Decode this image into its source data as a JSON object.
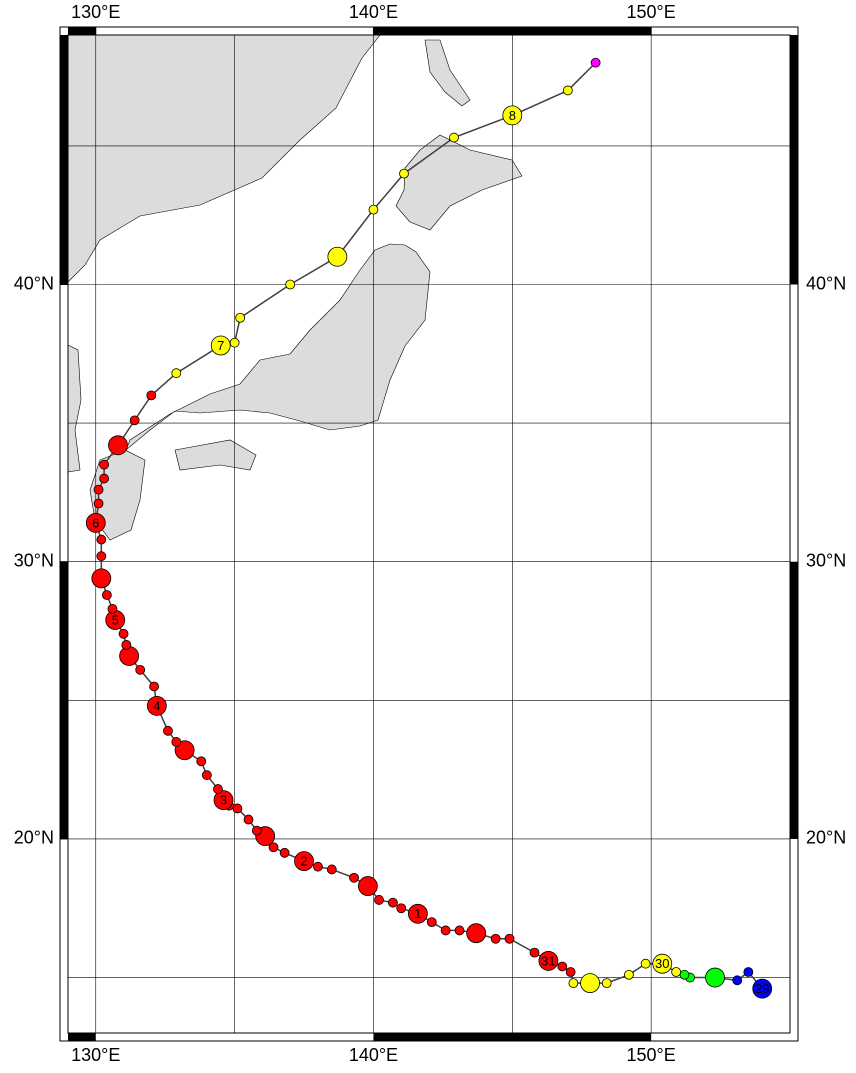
{
  "map": {
    "xlim": [
      129,
      155
    ],
    "ylim": [
      13,
      49
    ],
    "xticks": [
      {
        "value": 130,
        "label": "130°E"
      },
      {
        "value": 140,
        "label": "140°E"
      },
      {
        "value": 150,
        "label": "150°E"
      }
    ],
    "yticks": [
      {
        "value": 20,
        "label": "20°N"
      },
      {
        "value": 30,
        "label": "30°N"
      },
      {
        "value": 40,
        "label": "40°N"
      }
    ],
    "grid": {
      "lons": [
        130,
        135,
        140,
        145,
        150
      ],
      "lats": [
        15,
        20,
        25,
        30,
        35,
        40,
        45
      ]
    },
    "land_color": "#dcdcdc",
    "track_color": "#404040",
    "track": [
      {
        "lon": 154.0,
        "lat": 14.6,
        "color": "#0000ff",
        "major": true,
        "label": "29"
      },
      {
        "lon": 153.5,
        "lat": 15.2,
        "color": "#0000ff",
        "major": false
      },
      {
        "lon": 153.1,
        "lat": 14.9,
        "color": "#0000ff",
        "major": false
      },
      {
        "lon": 152.3,
        "lat": 15.0,
        "color": "#00ff00",
        "major": true
      },
      {
        "lon": 151.4,
        "lat": 15.0,
        "color": "#00ff00",
        "major": false
      },
      {
        "lon": 151.2,
        "lat": 15.1,
        "color": "#00ff00",
        "major": false
      },
      {
        "lon": 150.9,
        "lat": 15.2,
        "color": "#ffff00",
        "major": false
      },
      {
        "lon": 150.4,
        "lat": 15.5,
        "color": "#ffff00",
        "major": true,
        "label": "30"
      },
      {
        "lon": 149.8,
        "lat": 15.5,
        "color": "#ffff00",
        "major": false
      },
      {
        "lon": 149.2,
        "lat": 15.1,
        "color": "#ffff00",
        "major": false
      },
      {
        "lon": 148.4,
        "lat": 14.8,
        "color": "#ffff00",
        "major": false
      },
      {
        "lon": 147.8,
        "lat": 14.8,
        "color": "#ffff00",
        "major": true
      },
      {
        "lon": 147.2,
        "lat": 14.8,
        "color": "#ffff00",
        "major": false
      },
      {
        "lon": 147.1,
        "lat": 15.2,
        "color": "#ff0000",
        "major": false
      },
      {
        "lon": 146.8,
        "lat": 15.4,
        "color": "#ff0000",
        "major": false
      },
      {
        "lon": 146.3,
        "lat": 15.6,
        "color": "#ff0000",
        "major": true,
        "label": "31"
      },
      {
        "lon": 145.8,
        "lat": 15.9,
        "color": "#ff0000",
        "major": false
      },
      {
        "lon": 144.9,
        "lat": 16.4,
        "color": "#ff0000",
        "major": false
      },
      {
        "lon": 144.4,
        "lat": 16.4,
        "color": "#ff0000",
        "major": false
      },
      {
        "lon": 143.7,
        "lat": 16.6,
        "color": "#ff0000",
        "major": true
      },
      {
        "lon": 143.1,
        "lat": 16.7,
        "color": "#ff0000",
        "major": false
      },
      {
        "lon": 142.6,
        "lat": 16.7,
        "color": "#ff0000",
        "major": false
      },
      {
        "lon": 142.1,
        "lat": 17.0,
        "color": "#ff0000",
        "major": false
      },
      {
        "lon": 141.6,
        "lat": 17.3,
        "color": "#ff0000",
        "major": true,
        "label": "1"
      },
      {
        "lon": 141.0,
        "lat": 17.5,
        "color": "#ff0000",
        "major": false
      },
      {
        "lon": 140.7,
        "lat": 17.7,
        "color": "#ff0000",
        "major": false
      },
      {
        "lon": 140.2,
        "lat": 17.8,
        "color": "#ff0000",
        "major": false
      },
      {
        "lon": 139.8,
        "lat": 18.3,
        "color": "#ff0000",
        "major": true
      },
      {
        "lon": 139.3,
        "lat": 18.6,
        "color": "#ff0000",
        "major": false
      },
      {
        "lon": 138.5,
        "lat": 18.9,
        "color": "#ff0000",
        "major": false
      },
      {
        "lon": 138.0,
        "lat": 19.0,
        "color": "#ff0000",
        "major": false
      },
      {
        "lon": 137.5,
        "lat": 19.2,
        "color": "#ff0000",
        "major": true,
        "label": "2"
      },
      {
        "lon": 136.8,
        "lat": 19.5,
        "color": "#ff0000",
        "major": false
      },
      {
        "lon": 136.4,
        "lat": 19.7,
        "color": "#ff0000",
        "major": false
      },
      {
        "lon": 136.1,
        "lat": 20.1,
        "color": "#ff0000",
        "major": true
      },
      {
        "lon": 135.8,
        "lat": 20.3,
        "color": "#ff0000",
        "major": false
      },
      {
        "lon": 135.5,
        "lat": 20.7,
        "color": "#ff0000",
        "major": false
      },
      {
        "lon": 135.1,
        "lat": 21.1,
        "color": "#ff0000",
        "major": false
      },
      {
        "lon": 134.8,
        "lat": 21.2,
        "color": "#ff0000",
        "major": false
      },
      {
        "lon": 134.6,
        "lat": 21.4,
        "color": "#ff0000",
        "major": true,
        "label": "3"
      },
      {
        "lon": 134.4,
        "lat": 21.8,
        "color": "#ff0000",
        "major": false
      },
      {
        "lon": 134.0,
        "lat": 22.3,
        "color": "#ff0000",
        "major": false
      },
      {
        "lon": 133.8,
        "lat": 22.8,
        "color": "#ff0000",
        "major": false
      },
      {
        "lon": 133.2,
        "lat": 23.2,
        "color": "#ff0000",
        "major": true
      },
      {
        "lon": 132.9,
        "lat": 23.5,
        "color": "#ff0000",
        "major": false
      },
      {
        "lon": 132.6,
        "lat": 23.9,
        "color": "#ff0000",
        "major": false
      },
      {
        "lon": 132.2,
        "lat": 24.8,
        "color": "#ff0000",
        "major": true,
        "label": "4"
      },
      {
        "lon": 132.1,
        "lat": 25.5,
        "color": "#ff0000",
        "major": false
      },
      {
        "lon": 131.6,
        "lat": 26.1,
        "color": "#ff0000",
        "major": false
      },
      {
        "lon": 131.2,
        "lat": 26.6,
        "color": "#ff0000",
        "major": true
      },
      {
        "lon": 131.1,
        "lat": 27.0,
        "color": "#ff0000",
        "major": false
      },
      {
        "lon": 131.0,
        "lat": 27.4,
        "color": "#ff0000",
        "major": false
      },
      {
        "lon": 130.7,
        "lat": 27.9,
        "color": "#ff0000",
        "major": true,
        "label": "5"
      },
      {
        "lon": 130.6,
        "lat": 28.3,
        "color": "#ff0000",
        "major": false
      },
      {
        "lon": 130.4,
        "lat": 28.8,
        "color": "#ff0000",
        "major": false
      },
      {
        "lon": 130.2,
        "lat": 29.4,
        "color": "#ff0000",
        "major": true
      },
      {
        "lon": 130.2,
        "lat": 30.2,
        "color": "#ff0000",
        "major": false
      },
      {
        "lon": 130.2,
        "lat": 30.8,
        "color": "#ff0000",
        "major": false
      },
      {
        "lon": 130.0,
        "lat": 31.4,
        "color": "#ff0000",
        "major": true,
        "label": "6"
      },
      {
        "lon": 130.1,
        "lat": 32.1,
        "color": "#ff0000",
        "major": false
      },
      {
        "lon": 130.1,
        "lat": 32.6,
        "color": "#ff0000",
        "major": false
      },
      {
        "lon": 130.3,
        "lat": 33.0,
        "color": "#ff0000",
        "major": false
      },
      {
        "lon": 130.3,
        "lat": 33.5,
        "color": "#ff0000",
        "major": false
      },
      {
        "lon": 130.8,
        "lat": 34.2,
        "color": "#ff0000",
        "major": true
      },
      {
        "lon": 131.4,
        "lat": 35.1,
        "color": "#ff0000",
        "major": false
      },
      {
        "lon": 132.0,
        "lat": 36.0,
        "color": "#ff0000",
        "major": false
      },
      {
        "lon": 132.9,
        "lat": 36.8,
        "color": "#ffff00",
        "major": false
      },
      {
        "lon": 134.5,
        "lat": 37.8,
        "color": "#ffff00",
        "major": true,
        "label": "7"
      },
      {
        "lon": 135.0,
        "lat": 37.9,
        "color": "#ffff00",
        "major": false
      },
      {
        "lon": 135.2,
        "lat": 38.8,
        "color": "#ffff00",
        "major": false
      },
      {
        "lon": 137.0,
        "lat": 40.0,
        "color": "#ffff00",
        "major": false
      },
      {
        "lon": 138.7,
        "lat": 41.0,
        "color": "#ffff00",
        "major": true
      },
      {
        "lon": 140.0,
        "lat": 42.7,
        "color": "#ffff00",
        "major": false
      },
      {
        "lon": 141.1,
        "lat": 44.0,
        "color": "#ffff00",
        "major": false
      },
      {
        "lon": 142.9,
        "lat": 45.3,
        "color": "#ffff00",
        "major": false
      },
      {
        "lon": 145.0,
        "lat": 46.1,
        "color": "#ffff00",
        "major": true,
        "label": "8"
      },
      {
        "lon": 147.0,
        "lat": 47.0,
        "color": "#ffff00",
        "major": false
      },
      {
        "lon": 148.0,
        "lat": 48.0,
        "color": "#ff00ff",
        "major": false
      }
    ]
  }
}
